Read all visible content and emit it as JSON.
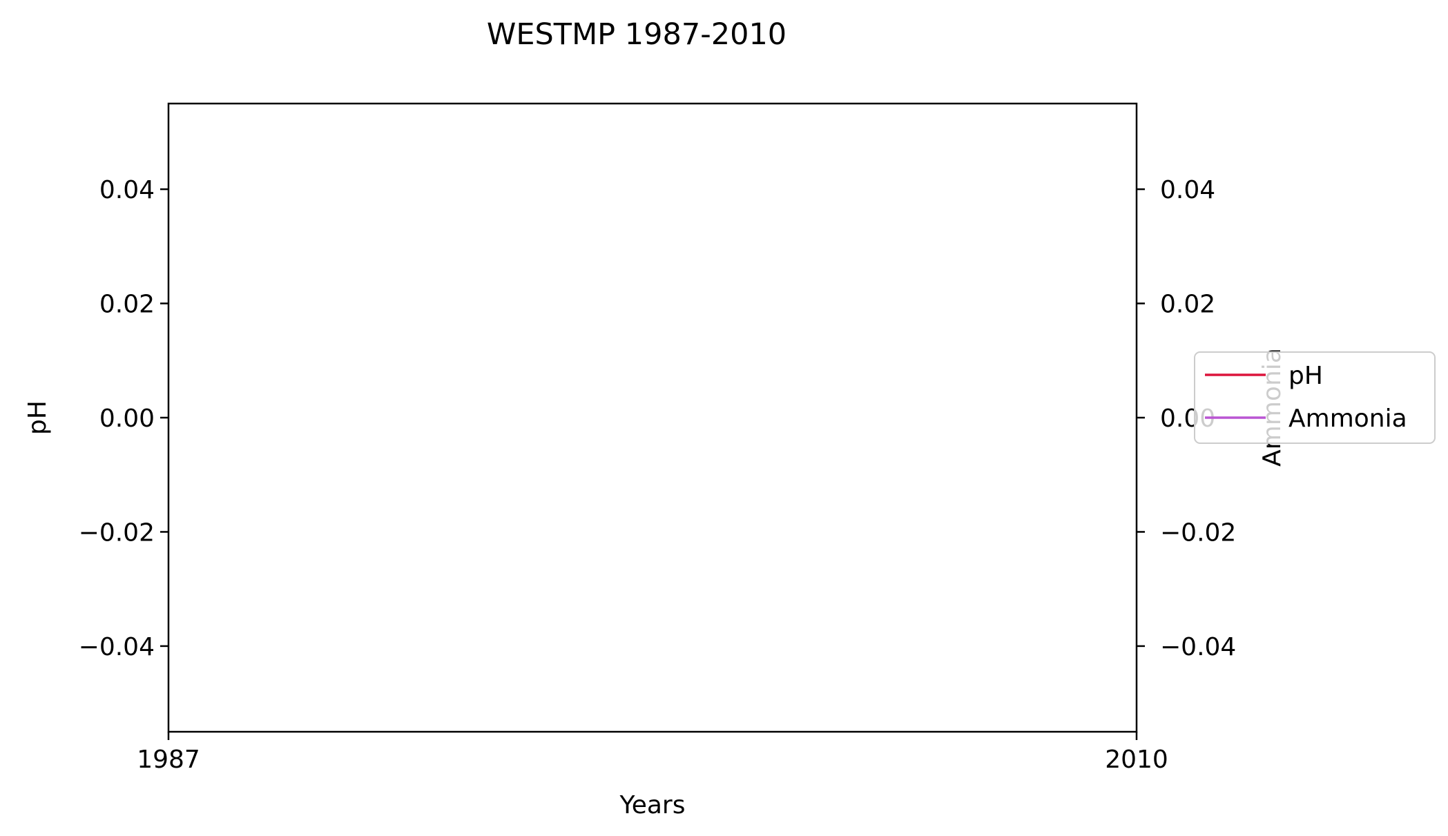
{
  "chart_data": {
    "type": "line",
    "title": "WESTMP 1987-2010",
    "xlabel": "Years",
    "ylabel": "pH",
    "ylabel_right": "Ammonia",
    "xlim": [
      1987,
      2010
    ],
    "x_ticks": [
      "1987",
      "2010"
    ],
    "ylim": [
      -0.055,
      0.055
    ],
    "ylim_right": [
      -0.055,
      0.055
    ],
    "y_ticks": [
      {
        "value": 0.04,
        "label": "0.04"
      },
      {
        "value": 0.02,
        "label": "0.02"
      },
      {
        "value": 0.0,
        "label": "0.00"
      },
      {
        "value": -0.02,
        "label": "−0.02"
      },
      {
        "value": -0.04,
        "label": "−0.04"
      }
    ],
    "y_ticks_right": [
      {
        "value": 0.04,
        "label": "0.04"
      },
      {
        "value": 0.02,
        "label": "0.02"
      },
      {
        "value": 0.0,
        "label": "0.00"
      },
      {
        "value": -0.02,
        "label": "−0.02"
      },
      {
        "value": -0.04,
        "label": "−0.04"
      }
    ],
    "grid": false,
    "legend_position": "right",
    "series": [
      {
        "name": "pH",
        "color": "#dc143c",
        "axis": "left",
        "x": [],
        "y": []
      },
      {
        "name": "Ammonia",
        "color": "#ba55d3",
        "axis": "right",
        "x": [],
        "y": []
      }
    ]
  }
}
